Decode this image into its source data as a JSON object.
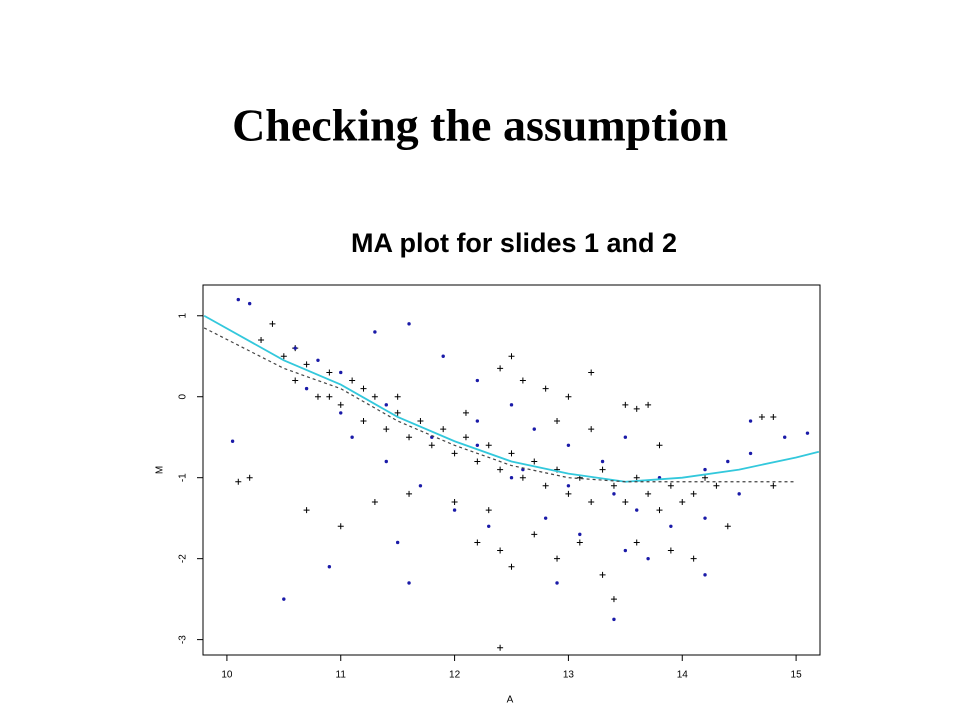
{
  "title": "Checking the assumption",
  "chart_data": {
    "type": "scatter",
    "title": "MA plot for slides 1 and 2",
    "xlabel": "A",
    "ylabel": "M",
    "xlim": [
      9.79,
      15.21
    ],
    "ylim": [
      -3.19,
      1.38
    ],
    "xticks": [
      10,
      11,
      12,
      13,
      14,
      15
    ],
    "yticks": [
      -3,
      -2,
      -1,
      0,
      1
    ],
    "grid": false,
    "series": [
      {
        "color": "#000000",
        "marker": "+",
        "x": [
          10.5,
          10.6,
          10.7,
          10.8,
          10.9,
          11.0,
          11.1,
          11.2,
          11.3,
          11.4,
          11.5,
          11.6,
          11.7,
          11.8,
          11.9,
          12.0,
          12.1,
          12.2,
          12.3,
          12.4,
          12.5,
          12.6,
          12.7,
          12.8,
          12.9,
          13.0,
          13.1,
          13.2,
          13.3,
          13.4,
          13.5,
          13.6,
          13.7,
          13.8,
          13.9,
          14.0,
          14.1,
          14.2,
          14.4,
          14.8,
          10.3,
          10.4,
          10.6,
          10.9,
          11.2,
          11.5,
          12.6,
          12.8,
          13.0,
          13.2,
          13.5,
          13.6,
          13.7,
          12.4,
          12.5,
          12.1,
          12.9,
          13.2,
          13.8,
          14.3,
          14.7,
          14.8,
          10.1,
          10.2,
          10.7,
          11.0,
          12.4,
          12.5,
          12.9,
          13.1,
          13.3,
          13.4,
          12.2,
          12.7,
          13.6,
          13.9,
          14.1,
          12.4,
          11.3,
          11.6,
          12.0,
          12.3
        ],
        "values": [
          0.5,
          0.2,
          0.4,
          0.0,
          0.3,
          -0.1,
          0.2,
          -0.3,
          0.0,
          -0.4,
          -0.2,
          -0.5,
          -0.3,
          -0.6,
          -0.4,
          -0.7,
          -0.5,
          -0.8,
          -0.6,
          -0.9,
          -0.7,
          -1.0,
          -0.8,
          -1.1,
          -0.9,
          -1.2,
          -1.0,
          -1.3,
          -0.9,
          -1.1,
          -1.3,
          -1.0,
          -1.2,
          -1.4,
          -1.1,
          -1.3,
          -1.2,
          -1.0,
          -1.6,
          -1.1,
          0.7,
          0.9,
          0.6,
          0.0,
          0.1,
          0.0,
          0.2,
          0.1,
          0.0,
          0.3,
          -0.1,
          -0.15,
          -0.1,
          0.35,
          0.5,
          -0.2,
          -0.3,
          -0.4,
          -0.6,
          -1.1,
          -0.25,
          -0.25,
          -1.05,
          -1.0,
          -1.4,
          -1.6,
          -1.9,
          -2.1,
          -2.0,
          -1.8,
          -2.2,
          -2.5,
          -1.8,
          -1.7,
          -1.8,
          -1.9,
          -2.0,
          -3.1,
          -1.3,
          -1.2,
          -1.3,
          -1.4
        ]
      },
      {
        "color": "#1a1aa8",
        "marker": "dot",
        "x": [
          10.1,
          10.2,
          10.6,
          10.8,
          11.0,
          11.3,
          11.6,
          11.9,
          12.2,
          12.5,
          10.7,
          11.0,
          11.4,
          11.8,
          12.2,
          12.6,
          13.0,
          13.4,
          13.8,
          14.2,
          14.6,
          14.9,
          15.1,
          14.6,
          14.4,
          13.5,
          13.0,
          12.7,
          11.4,
          11.7,
          12.0,
          12.3,
          12.8,
          13.1,
          13.5,
          13.7,
          13.9,
          14.2,
          14.5,
          10.05,
          10.5,
          10.9,
          11.6,
          11.5,
          12.5,
          13.3,
          13.6,
          12.9,
          14.2,
          13.4,
          12.2,
          11.1
        ],
        "values": [
          1.2,
          1.15,
          0.6,
          0.45,
          0.3,
          0.8,
          0.9,
          0.5,
          0.2,
          -0.1,
          0.1,
          -0.2,
          -0.1,
          -0.5,
          -0.6,
          -0.9,
          -1.1,
          -1.2,
          -1.0,
          -0.9,
          -0.7,
          -0.5,
          -0.45,
          -0.3,
          -0.8,
          -0.5,
          -0.6,
          -0.4,
          -0.8,
          -1.1,
          -1.4,
          -1.6,
          -1.5,
          -1.7,
          -1.9,
          -2.0,
          -1.6,
          -1.5,
          -1.2,
          -0.55,
          -2.5,
          -2.1,
          -2.3,
          -1.8,
          -1.0,
          -0.8,
          -1.4,
          -2.3,
          -2.2,
          -2.75,
          -0.3,
          -0.5
        ]
      },
      {
        "color": "#33c8dc",
        "marker": "line",
        "x": [
          9.8,
          10.5,
          11.0,
          11.5,
          12.0,
          12.5,
          13.0,
          13.5,
          14.0,
          14.5,
          15.0,
          15.2
        ],
        "values": [
          1.0,
          0.45,
          0.15,
          -0.25,
          -0.55,
          -0.8,
          -0.95,
          -1.05,
          -1.0,
          -0.9,
          -0.75,
          -0.68
        ]
      },
      {
        "color": "#444444",
        "marker": "dashed-line",
        "x": [
          9.8,
          10.5,
          11.0,
          11.5,
          12.0,
          12.5,
          13.0,
          13.5,
          14.0,
          14.5,
          15.0
        ],
        "values": [
          0.85,
          0.35,
          0.1,
          -0.3,
          -0.6,
          -0.85,
          -1.0,
          -1.05,
          -1.05,
          -1.05,
          -1.05
        ]
      }
    ]
  }
}
